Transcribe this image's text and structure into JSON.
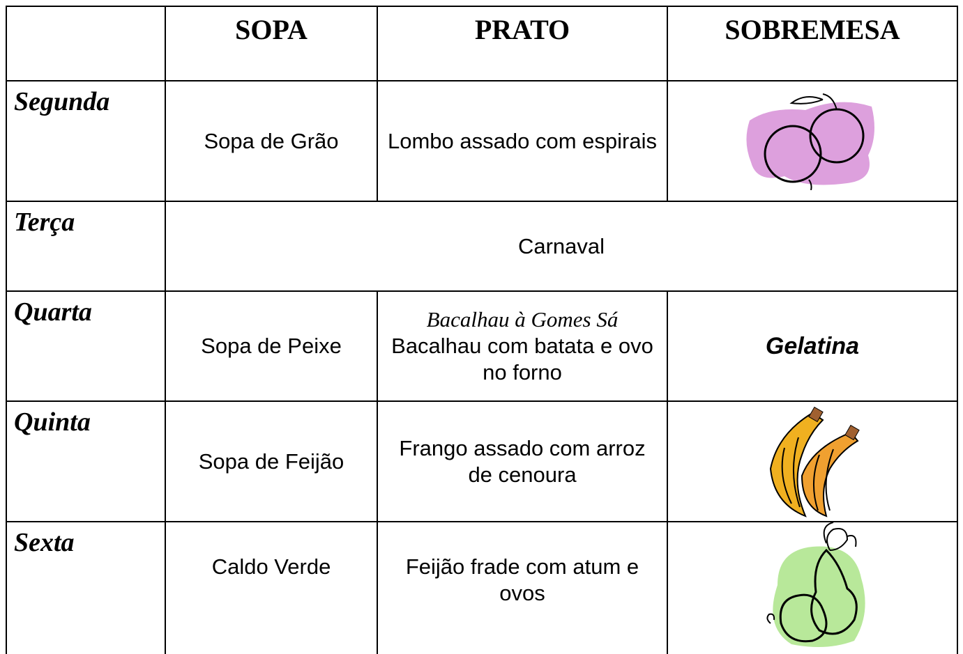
{
  "table": {
    "header": [
      "SOPA",
      "PRATO",
      "SOBREMESA"
    ],
    "rows": [
      {
        "day": "Segunda",
        "soup": "Sopa de Grão",
        "dish": "Lombo assado com espirais"
      },
      {
        "day": "Terça",
        "note": "Carnaval"
      },
      {
        "day": "Quarta",
        "soup": "Sopa de Peixe",
        "dish_title": "Bacalhau à Gomes Sá",
        "dish": "Bacalhau com batata e ovo no forno",
        "dessert": "Gelatina"
      },
      {
        "day": "Quinta",
        "soup": "Sopa de Feijão",
        "dish": "Frango assado com arroz de cenoura"
      },
      {
        "day": "Sexta",
        "soup": "Caldo Verde",
        "dish": "Feijão frade com atum e ovos"
      }
    ]
  }
}
